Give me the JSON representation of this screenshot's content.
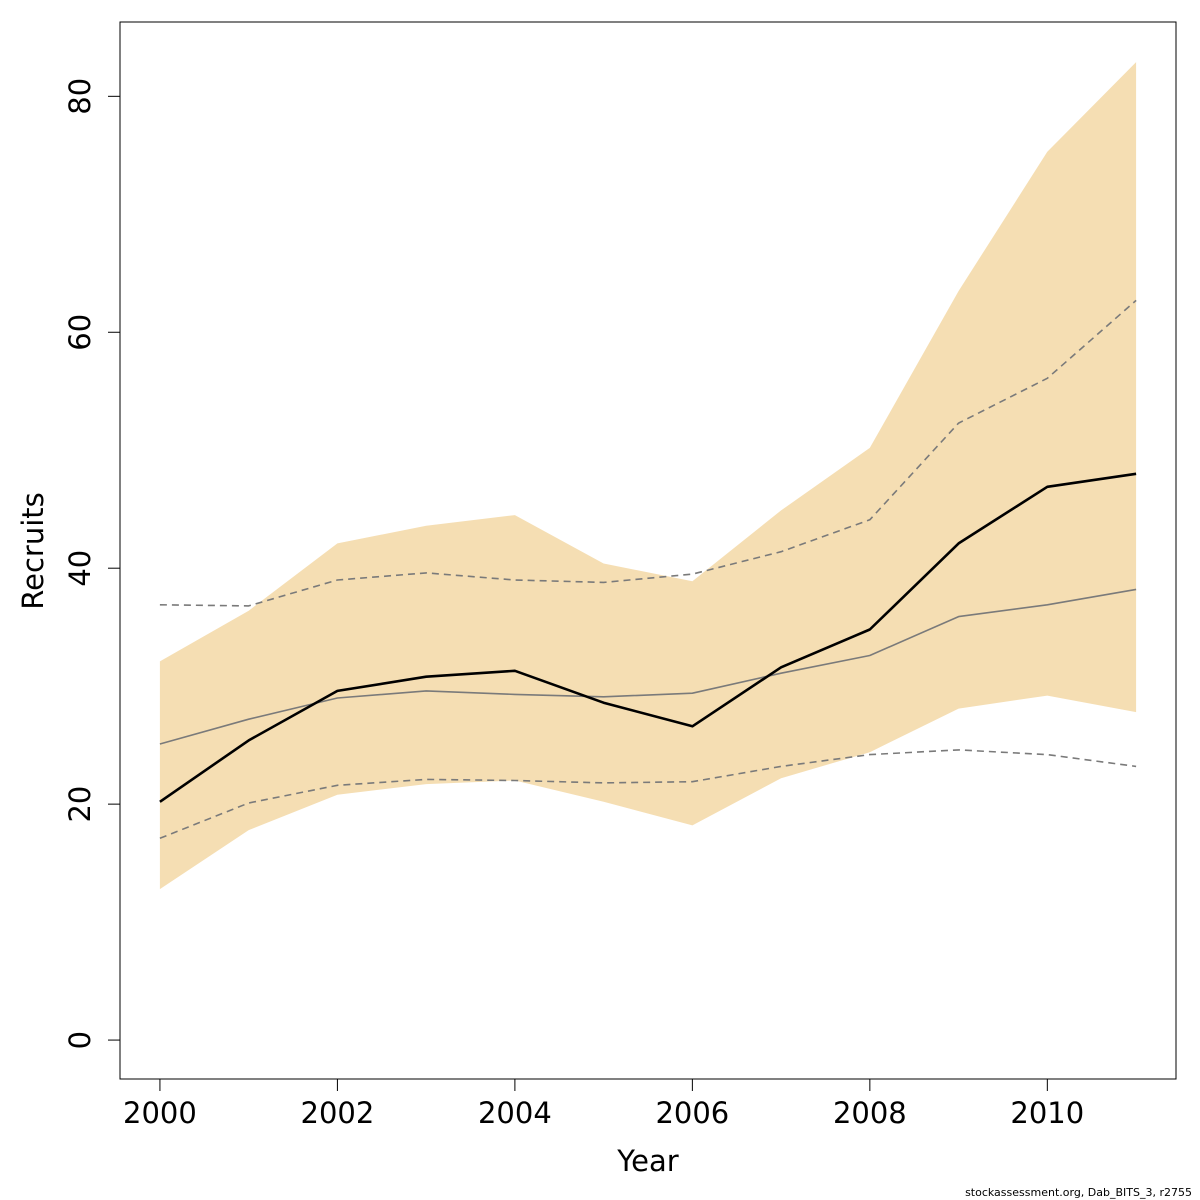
{
  "footer": "stockassessment.org, Dab_BITS_3, r2755",
  "colors": {
    "band": "#f5deb3",
    "estimate": "#000000",
    "previous": "#7a7a7a"
  },
  "chart_data": {
    "type": "line",
    "xlabel": "Year",
    "ylabel": "Recruits",
    "xlim": [
      1999.55,
      2011.45
    ],
    "ylim": [
      -3.3,
      86.3
    ],
    "x_ticks": [
      2000,
      2002,
      2004,
      2006,
      2008,
      2010
    ],
    "y_ticks": [
      0,
      20,
      40,
      60,
      80
    ],
    "x": [
      2000,
      2001,
      2002,
      2003,
      2004,
      2005,
      2006,
      2007,
      2008,
      2009,
      2010,
      2011
    ],
    "band": {
      "lower": [
        12.8,
        17.8,
        20.8,
        21.7,
        22.0,
        20.2,
        18.2,
        22.2,
        24.4,
        28.1,
        29.2,
        27.8
      ],
      "upper": [
        32.1,
        36.4,
        42.1,
        43.6,
        44.5,
        40.4,
        38.9,
        44.9,
        50.2,
        63.5,
        75.3,
        82.9
      ]
    },
    "series": [
      {
        "style": "solid-thick",
        "values": [
          20.2,
          25.4,
          29.6,
          30.8,
          31.3,
          28.6,
          26.6,
          31.6,
          34.8,
          42.1,
          46.9,
          48.0
        ]
      },
      {
        "style": "solid-thin",
        "values": [
          25.1,
          27.2,
          29.0,
          29.6,
          29.3,
          29.1,
          29.4,
          31.1,
          32.6,
          35.9,
          36.9,
          38.2
        ]
      },
      {
        "style": "dashed",
        "values": [
          36.9,
          36.8,
          39.0,
          39.6,
          39.0,
          38.8,
          39.5,
          41.4,
          44.1,
          52.3,
          56.1,
          62.7
        ]
      },
      {
        "style": "dashed",
        "values": [
          17.1,
          20.1,
          21.6,
          22.1,
          22.0,
          21.8,
          21.9,
          23.2,
          24.2,
          24.6,
          24.2,
          23.2
        ]
      }
    ]
  }
}
